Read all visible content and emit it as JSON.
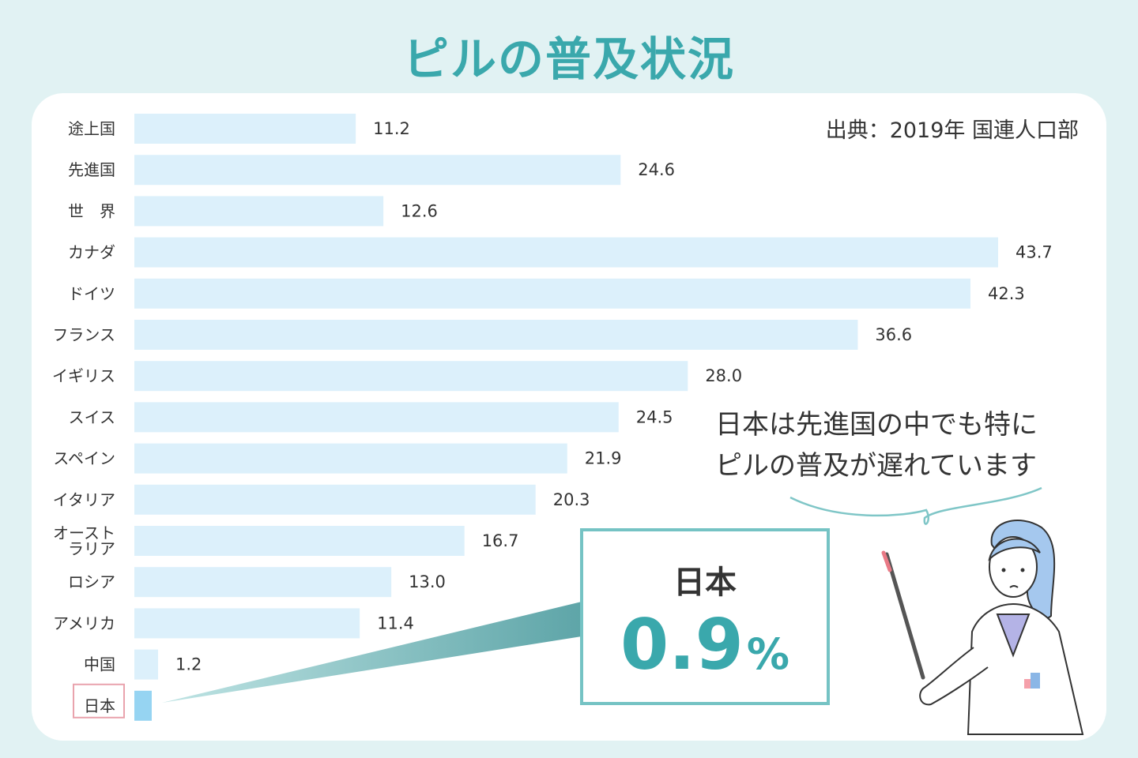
{
  "title": "ピルの普及状況",
  "source": "出典：2019年 国連人口部",
  "speech_bubble": {
    "line1": "日本は先進国の中でも特に",
    "line2": "ピルの普及が遅れています"
  },
  "callout": {
    "label": "日本",
    "value": "0.9",
    "unit": "%"
  },
  "colors": {
    "accent": "#3aa8ac",
    "bar": "#dcf0fb",
    "bar_highlight": "#96d4f2",
    "background": "#e1f2f3"
  },
  "chart_data": {
    "type": "bar",
    "orientation": "horizontal",
    "title": "ピルの普及状況",
    "unit": "%",
    "categories": [
      "途上国",
      "先進国",
      "世　界",
      "カナダ",
      "ドイツ",
      "フランス",
      "イギリス",
      "スイス",
      "スペイン",
      "イタリア",
      "オーストラリア",
      "ロシア",
      "アメリカ",
      "中国",
      "日本"
    ],
    "values": [
      11.2,
      24.6,
      12.6,
      43.7,
      42.3,
      36.6,
      28.0,
      24.5,
      21.9,
      20.3,
      16.7,
      13.0,
      11.4,
      1.2,
      0.9
    ],
    "value_labels": [
      "11.2",
      "24.6",
      "12.6",
      "43.7",
      "42.3",
      "36.6",
      "28.0",
      "24.5",
      "21.9",
      "20.3",
      "16.7",
      "13.0",
      "11.4",
      "1.2",
      ""
    ],
    "highlight": "日本",
    "xlim": [
      0,
      43.7
    ]
  }
}
